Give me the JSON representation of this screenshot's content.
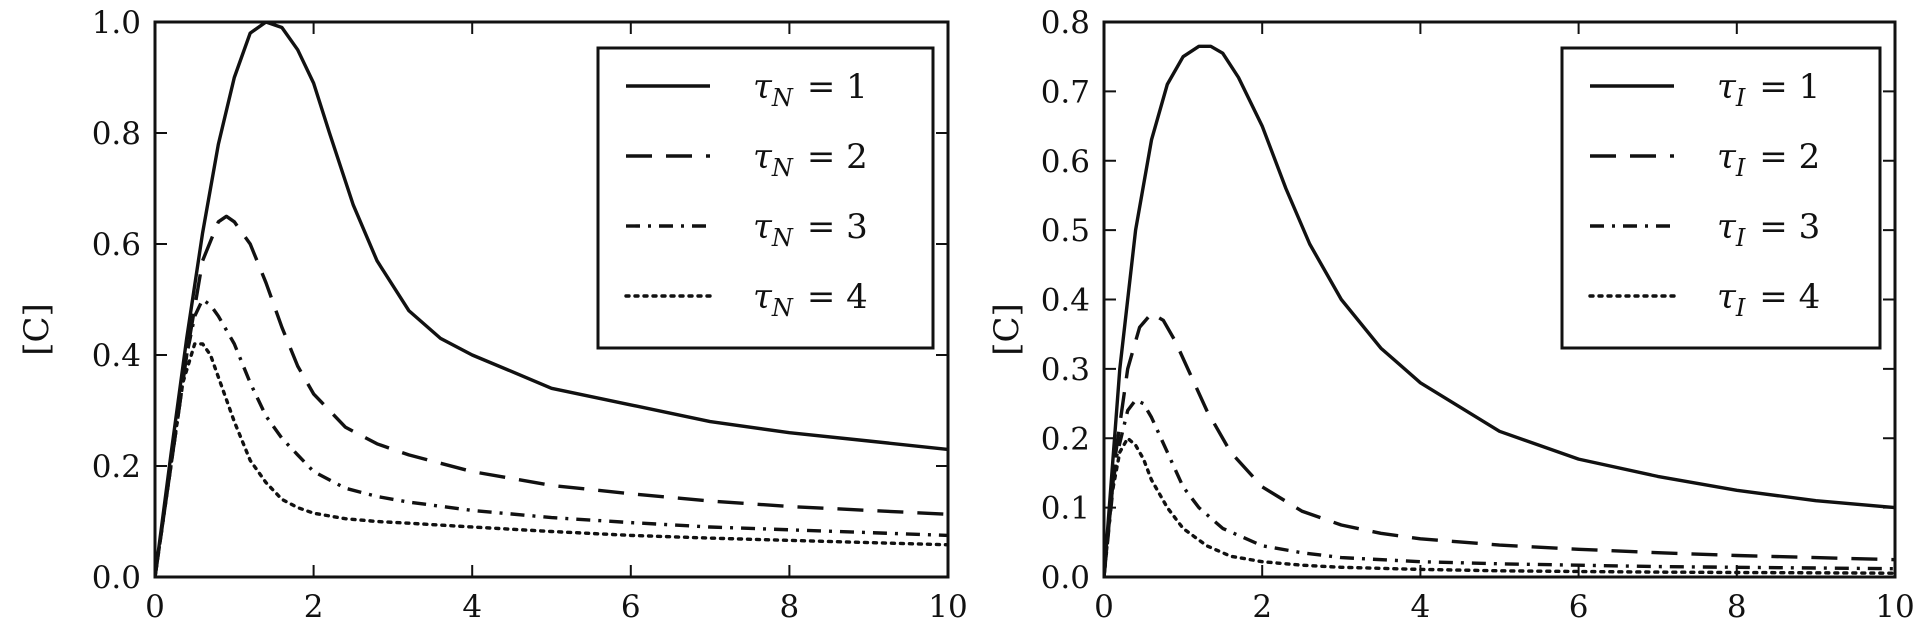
{
  "chart_data": [
    {
      "type": "line",
      "title": "",
      "xlabel": "",
      "ylabel": "[C]",
      "xlim": [
        0,
        10
      ],
      "ylim": [
        0,
        1.0
      ],
      "xticks": [
        "0",
        "2",
        "4",
        "6",
        "8",
        "10"
      ],
      "yticks": [
        "0.0",
        "0.2",
        "0.4",
        "0.6",
        "0.8",
        "1.0"
      ],
      "grid": false,
      "legend_position": "top-right",
      "color": "#111111",
      "series": [
        {
          "name": "τN = 1",
          "legend_sym": "τ",
          "legend_sub": "N",
          "legend_rhs": "= 1",
          "dash": "solid",
          "x": [
            0,
            0.2,
            0.4,
            0.6,
            0.8,
            1.0,
            1.2,
            1.4,
            1.6,
            1.8,
            2.0,
            2.2,
            2.5,
            2.8,
            3.2,
            3.6,
            4.0,
            4.5,
            5.0,
            6.0,
            7.0,
            8.0,
            9.0,
            10.0
          ],
          "y": [
            0,
            0.22,
            0.43,
            0.62,
            0.78,
            0.9,
            0.98,
            1.0,
            0.99,
            0.95,
            0.89,
            0.8,
            0.67,
            0.57,
            0.48,
            0.43,
            0.4,
            0.37,
            0.34,
            0.31,
            0.28,
            0.26,
            0.245,
            0.23
          ]
        },
        {
          "name": "τN = 2",
          "legend_sym": "τ",
          "legend_sub": "N",
          "legend_rhs": "= 2",
          "dash": "dashed",
          "x": [
            0,
            0.2,
            0.4,
            0.6,
            0.8,
            0.9,
            1.0,
            1.2,
            1.4,
            1.6,
            1.8,
            2.0,
            2.4,
            2.8,
            3.2,
            4.0,
            5.0,
            6.0,
            7.0,
            8.0,
            9.0,
            10.0
          ],
          "y": [
            0,
            0.2,
            0.4,
            0.57,
            0.64,
            0.65,
            0.64,
            0.6,
            0.53,
            0.45,
            0.38,
            0.33,
            0.27,
            0.24,
            0.22,
            0.19,
            0.165,
            0.15,
            0.137,
            0.127,
            0.12,
            0.113
          ]
        },
        {
          "name": "τN = 3",
          "legend_sym": "τ",
          "legend_sub": "N",
          "legend_rhs": "= 3",
          "dash": "dashdot",
          "x": [
            0,
            0.2,
            0.4,
            0.5,
            0.6,
            0.7,
            0.8,
            1.0,
            1.2,
            1.4,
            1.6,
            1.8,
            2.0,
            2.4,
            2.8,
            3.2,
            4.0,
            5.0,
            6.0,
            7.0,
            8.0,
            9.0,
            10.0
          ],
          "y": [
            0,
            0.2,
            0.4,
            0.47,
            0.5,
            0.49,
            0.47,
            0.42,
            0.35,
            0.29,
            0.25,
            0.22,
            0.19,
            0.16,
            0.145,
            0.135,
            0.12,
            0.107,
            0.098,
            0.09,
            0.085,
            0.08,
            0.075
          ]
        },
        {
          "name": "τN = 4",
          "legend_sym": "τ",
          "legend_sub": "N",
          "legend_rhs": "= 4",
          "dash": "dotted",
          "x": [
            0,
            0.2,
            0.35,
            0.5,
            0.6,
            0.7,
            0.8,
            1.0,
            1.2,
            1.4,
            1.6,
            1.8,
            2.0,
            2.4,
            2.8,
            3.2,
            4.0,
            5.0,
            6.0,
            7.0,
            8.0,
            9.0,
            10.0
          ],
          "y": [
            0,
            0.2,
            0.35,
            0.42,
            0.42,
            0.4,
            0.36,
            0.28,
            0.21,
            0.17,
            0.14,
            0.125,
            0.115,
            0.105,
            0.1,
            0.097,
            0.09,
            0.082,
            0.075,
            0.07,
            0.066,
            0.062,
            0.058
          ]
        }
      ]
    },
    {
      "type": "line",
      "title": "",
      "xlabel": "",
      "ylabel": "[C]",
      "xlim": [
        0,
        10
      ],
      "ylim": [
        0,
        0.8
      ],
      "xticks": [
        "0",
        "2",
        "4",
        "6",
        "8",
        "10"
      ],
      "yticks": [
        "0.0",
        "0.1",
        "0.2",
        "0.3",
        "0.4",
        "0.5",
        "0.6",
        "0.7",
        "0.8"
      ],
      "grid": false,
      "legend_position": "top-right",
      "color": "#111111",
      "series": [
        {
          "name": "τI = 1",
          "legend_sym": "τ",
          "legend_sub": "I",
          "legend_rhs": "= 1",
          "dash": "solid",
          "x": [
            0,
            0.2,
            0.4,
            0.6,
            0.8,
            1.0,
            1.2,
            1.35,
            1.5,
            1.7,
            2.0,
            2.3,
            2.6,
            3.0,
            3.5,
            4.0,
            5.0,
            6.0,
            7.0,
            8.0,
            9.0,
            10.0
          ],
          "y": [
            0,
            0.3,
            0.5,
            0.63,
            0.71,
            0.75,
            0.765,
            0.765,
            0.755,
            0.72,
            0.65,
            0.56,
            0.48,
            0.4,
            0.33,
            0.28,
            0.21,
            0.17,
            0.145,
            0.125,
            0.11,
            0.1
          ]
        },
        {
          "name": "τI = 2",
          "legend_sym": "τ",
          "legend_sub": "I",
          "legend_rhs": "= 2",
          "dash": "dashed",
          "x": [
            0,
            0.15,
            0.3,
            0.45,
            0.6,
            0.75,
            0.9,
            1.1,
            1.3,
            1.6,
            2.0,
            2.5,
            3.0,
            3.5,
            4.0,
            5.0,
            6.0,
            7.0,
            8.0,
            9.0,
            10.0
          ],
          "y": [
            0,
            0.18,
            0.3,
            0.36,
            0.38,
            0.37,
            0.34,
            0.29,
            0.24,
            0.18,
            0.13,
            0.095,
            0.075,
            0.063,
            0.055,
            0.046,
            0.04,
            0.035,
            0.031,
            0.028,
            0.025
          ]
        },
        {
          "name": "τI = 3",
          "legend_sym": "τ",
          "legend_sub": "I",
          "legend_rhs": "= 3",
          "dash": "dashdot",
          "x": [
            0,
            0.15,
            0.3,
            0.4,
            0.5,
            0.6,
            0.8,
            1.0,
            1.2,
            1.5,
            2.0,
            2.5,
            3.0,
            4.0,
            5.0,
            6.0,
            7.0,
            8.0,
            9.0,
            10.0
          ],
          "y": [
            0,
            0.17,
            0.24,
            0.255,
            0.25,
            0.23,
            0.18,
            0.13,
            0.1,
            0.07,
            0.045,
            0.035,
            0.028,
            0.022,
            0.019,
            0.017,
            0.015,
            0.014,
            0.013,
            0.012
          ]
        },
        {
          "name": "τI = 4",
          "legend_sym": "τ",
          "legend_sub": "I",
          "legend_rhs": "= 4",
          "dash": "dotted",
          "x": [
            0,
            0.1,
            0.2,
            0.3,
            0.4,
            0.5,
            0.6,
            0.8,
            1.0,
            1.3,
            1.6,
            2.0,
            2.5,
            3.0,
            4.0,
            5.0,
            6.0,
            7.0,
            8.0,
            9.0,
            10.0
          ],
          "y": [
            0,
            0.12,
            0.18,
            0.2,
            0.19,
            0.17,
            0.14,
            0.1,
            0.07,
            0.045,
            0.03,
            0.022,
            0.017,
            0.014,
            0.011,
            0.009,
            0.008,
            0.007,
            0.0065,
            0.006,
            0.0055
          ]
        }
      ]
    }
  ]
}
